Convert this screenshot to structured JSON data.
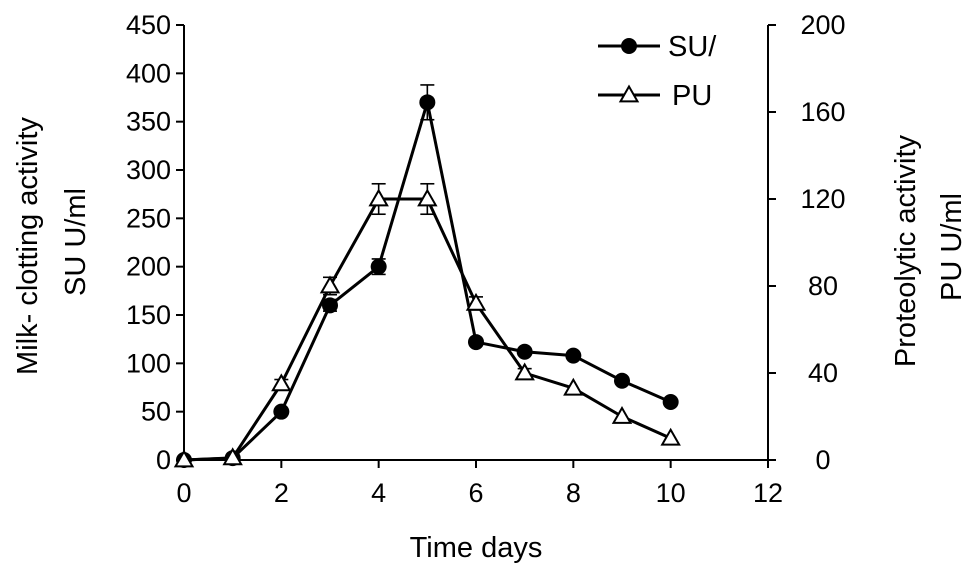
{
  "chart_data": {
    "type": "line",
    "x_label": "Time days",
    "y_left_label_lines": [
      "Milk- clotting activity",
      "SU U/ml"
    ],
    "y_right_label_lines": [
      "Proteolytic activity",
      "PU U/ml"
    ],
    "x_range": [
      0,
      12
    ],
    "x_ticks": [
      0,
      2,
      4,
      6,
      8,
      10,
      12
    ],
    "y_left_range": [
      0,
      450
    ],
    "y_left_ticks": [
      0,
      50,
      100,
      150,
      200,
      250,
      300,
      350,
      400,
      450
    ],
    "y_right_range": [
      0,
      200
    ],
    "y_right_ticks": [
      0,
      40,
      80,
      120,
      160,
      200
    ],
    "grid": false,
    "legend_position": "top-right",
    "series": [
      {
        "name": "SU/",
        "axis": "left",
        "marker": "filled-circle",
        "x": [
          0,
          1,
          2,
          3,
          4,
          5,
          6,
          7,
          8,
          9,
          10
        ],
        "y": [
          0,
          2,
          50,
          160,
          200,
          370,
          122,
          112,
          108,
          82,
          60
        ],
        "error": [
          0,
          0,
          0,
          6,
          8,
          18,
          0,
          0,
          0,
          0,
          0
        ]
      },
      {
        "name": "PU",
        "axis": "right",
        "marker": "open-triangle",
        "x": [
          0,
          1,
          2,
          3,
          4,
          5,
          6,
          7,
          8,
          9,
          10
        ],
        "y": [
          0,
          1,
          35,
          80,
          120,
          120,
          72,
          40,
          33,
          20,
          10
        ],
        "error": [
          0,
          0,
          2,
          4,
          7,
          7,
          3,
          2,
          0,
          0,
          0
        ]
      }
    ],
    "colors": {
      "line": "#000000",
      "marker_fill_open": "#ffffff",
      "marker_fill_solid": "#000000"
    }
  }
}
